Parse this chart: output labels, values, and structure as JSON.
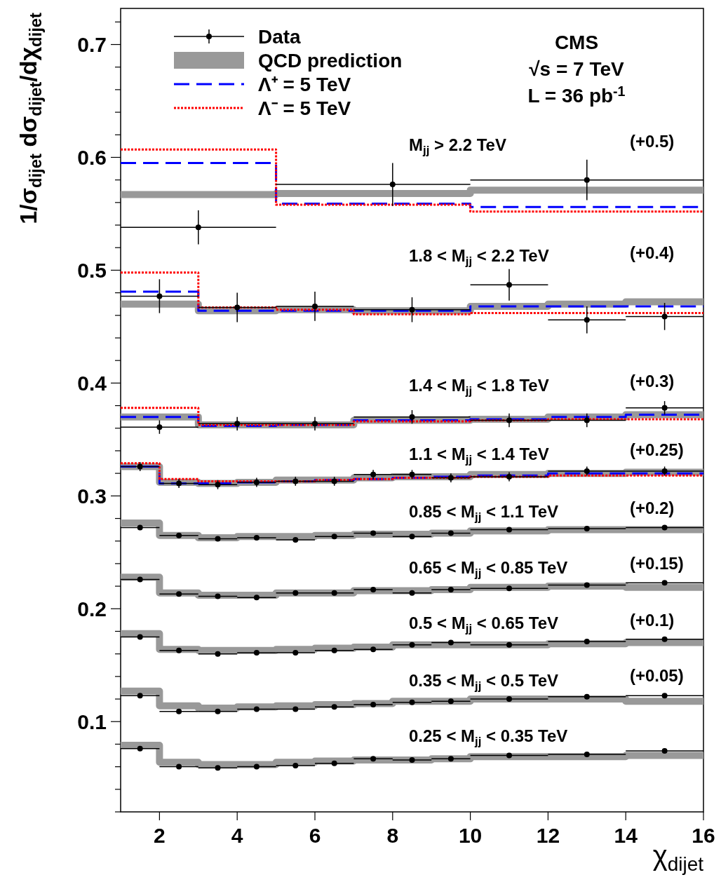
{
  "chart_data": {
    "type": "scatter",
    "xlabel": "χ$_{dijet}$",
    "ylabel": "1/σ$_{dijet}$ dσ$_{dijet}$/dχ$_{dijet}$",
    "xlim": [
      1,
      16
    ],
    "xticks": [
      2,
      4,
      6,
      8,
      10,
      12,
      14,
      16
    ],
    "ylim": [
      0.02,
      0.732
    ],
    "yticks": [
      {
        "value": 0.02,
        "label": null
      },
      {
        "value": 0.04,
        "label": null
      },
      {
        "value": 0.06,
        "label": null
      },
      {
        "value": 0.08,
        "label": null
      },
      0.1,
      {
        "value": 0.12,
        "label": null
      },
      {
        "value": 0.14,
        "label": null
      },
      {
        "value": 0.16,
        "label": null
      },
      {
        "value": 0.18,
        "label": null
      },
      0.2,
      {
        "value": 0.22,
        "label": null
      },
      {
        "value": 0.24,
        "label": null
      },
      {
        "value": 0.26,
        "label": null
      },
      {
        "value": 0.28,
        "label": null
      },
      0.3,
      {
        "value": 0.32,
        "label": null
      },
      {
        "value": 0.34,
        "label": null
      },
      {
        "value": 0.36,
        "label": null
      },
      {
        "value": 0.38,
        "label": null
      },
      0.4,
      {
        "value": 0.42,
        "label": null
      },
      {
        "value": 0.44,
        "label": null
      },
      {
        "value": 0.46,
        "label": null
      },
      {
        "value": 0.48,
        "label": null
      },
      0.5,
      {
        "value": 0.52,
        "label": null
      },
      {
        "value": 0.54,
        "label": null
      },
      {
        "value": 0.56,
        "label": null
      },
      {
        "value": 0.58,
        "label": null
      },
      0.6,
      {
        "value": 0.62,
        "label": null
      },
      {
        "value": 0.64,
        "label": null
      },
      {
        "value": 0.66,
        "label": null
      },
      {
        "value": 0.68,
        "label": null
      },
      0.7,
      {
        "value": 0.72,
        "label": null
      }
    ],
    "legend": "top left",
    "series": [
      {
        "name": "Data",
        "color": "#000000",
        "marker": "circle",
        "x": [
          3,
          8,
          13,
          2,
          4,
          6,
          8.5,
          11,
          13,
          15,
          2,
          4,
          6,
          8.5,
          11,
          13,
          15,
          1.5,
          2.5,
          3.5,
          4.5,
          5.5,
          6.5,
          7.5,
          8.5,
          9.5,
          11,
          13,
          15,
          1.5,
          2.5,
          3.5,
          4.5,
          5.5,
          6.5,
          7.5,
          8.5,
          9.5,
          11,
          13,
          15,
          1.5,
          2.5,
          3.5,
          4.5,
          5.5,
          6.5,
          7.5,
          8.5,
          9.5,
          11,
          13,
          15,
          1.5,
          2.5,
          3.5,
          4.5,
          5.5,
          6.5,
          7.5,
          8.5,
          9.5,
          11,
          13,
          15,
          1.5,
          2.5,
          3.5,
          4.5,
          5.5,
          6.5,
          7.5,
          8.5,
          9.5,
          11,
          13,
          15,
          1.5,
          2.5,
          3.5,
          4.5,
          5.5,
          6.5,
          7.5,
          8.5,
          9.5,
          11,
          13,
          15
        ],
        "values": [
          0.538,
          0.576,
          0.58,
          0.477,
          0.467,
          0.468,
          0.465,
          0.487,
          0.456,
          0.459,
          0.361,
          0.364,
          0.364,
          0.37,
          0.367,
          0.367,
          0.378,
          0.326,
          0.311,
          0.31,
          0.312,
          0.313,
          0.313,
          0.319,
          0.319,
          0.316,
          0.317,
          0.322,
          0.322,
          0.272,
          0.265,
          0.262,
          0.263,
          0.261,
          0.264,
          0.267,
          0.264,
          0.267,
          0.27,
          0.271,
          0.272,
          0.226,
          0.213,
          0.211,
          0.21,
          0.214,
          0.214,
          0.217,
          0.214,
          0.217,
          0.218,
          0.221,
          0.223,
          0.175,
          0.163,
          0.16,
          0.161,
          0.161,
          0.163,
          0.164,
          0.168,
          0.17,
          0.168,
          0.171,
          0.173,
          0.123,
          0.109,
          0.109,
          0.111,
          0.111,
          0.113,
          0.115,
          0.117,
          0.118,
          0.12,
          0.122,
          0.123,
          0.076,
          0.06,
          0.059,
          0.06,
          0.061,
          0.063,
          0.067,
          0.066,
          0.067,
          0.07,
          0.071,
          0.074
        ],
        "errors": [
          0.015,
          0.019,
          0.018,
          0.015,
          0.013,
          0.013,
          0.011,
          0.014,
          0.012,
          0.012,
          0.006,
          0.006,
          0.006,
          0.006,
          0.006,
          0.006,
          0.006,
          0.004,
          0.004,
          0.004,
          0.004,
          0.004,
          0.004,
          0.004,
          0.004,
          0.004,
          0.004,
          0.004,
          0.004,
          null,
          null,
          null,
          null,
          null,
          null,
          null,
          null,
          null,
          null,
          null,
          null,
          null,
          null,
          null,
          null,
          null,
          null,
          null,
          null,
          null,
          null,
          null,
          null,
          null,
          null,
          null,
          null,
          null,
          null,
          null,
          null,
          null,
          null,
          null,
          null,
          null,
          null,
          null,
          null,
          null,
          null,
          null,
          null,
          null,
          null,
          null,
          null,
          null,
          null,
          null,
          null,
          null,
          null,
          null,
          null,
          null,
          null,
          null,
          null
        ],
        "xerrors": [
          [
            1,
            5
          ],
          [
            5,
            10
          ],
          [
            10,
            16
          ],
          [
            1,
            3
          ],
          [
            3,
            5
          ],
          [
            5,
            7
          ],
          [
            7,
            10
          ],
          [
            10,
            12
          ],
          [
            12,
            14
          ],
          [
            14,
            16
          ],
          [
            1,
            3
          ],
          [
            3,
            5
          ],
          [
            5,
            7
          ],
          [
            7,
            10
          ],
          [
            10,
            12
          ],
          [
            12,
            14
          ],
          [
            14,
            16
          ],
          [
            1,
            2
          ],
          [
            2,
            3
          ],
          [
            3,
            4
          ],
          [
            4,
            5
          ],
          [
            5,
            6
          ],
          [
            6,
            7
          ],
          [
            7,
            8
          ],
          [
            8,
            9
          ],
          [
            9,
            10
          ],
          [
            10,
            12
          ],
          [
            12,
            14
          ],
          [
            14,
            16
          ],
          [
            1,
            2
          ],
          [
            2,
            3
          ],
          [
            3,
            4
          ],
          [
            4,
            5
          ],
          [
            5,
            6
          ],
          [
            6,
            7
          ],
          [
            7,
            8
          ],
          [
            8,
            9
          ],
          [
            9,
            10
          ],
          [
            10,
            12
          ],
          [
            12,
            14
          ],
          [
            14,
            16
          ],
          [
            1,
            2
          ],
          [
            2,
            3
          ],
          [
            3,
            4
          ],
          [
            4,
            5
          ],
          [
            5,
            6
          ],
          [
            6,
            7
          ],
          [
            7,
            8
          ],
          [
            8,
            9
          ],
          [
            9,
            10
          ],
          [
            10,
            12
          ],
          [
            12,
            14
          ],
          [
            14,
            16
          ],
          [
            1,
            2
          ],
          [
            2,
            3
          ],
          [
            3,
            4
          ],
          [
            4,
            5
          ],
          [
            5,
            6
          ],
          [
            6,
            7
          ],
          [
            7,
            8
          ],
          [
            8,
            9
          ],
          [
            9,
            10
          ],
          [
            10,
            12
          ],
          [
            12,
            14
          ],
          [
            14,
            16
          ],
          [
            1,
            2
          ],
          [
            2,
            3
          ],
          [
            3,
            4
          ],
          [
            4,
            5
          ],
          [
            5,
            6
          ],
          [
            6,
            7
          ],
          [
            7,
            8
          ],
          [
            8,
            9
          ],
          [
            9,
            10
          ],
          [
            10,
            12
          ],
          [
            12,
            14
          ],
          [
            14,
            16
          ],
          [
            1,
            2
          ],
          [
            2,
            3
          ],
          [
            3,
            4
          ],
          [
            4,
            5
          ],
          [
            5,
            6
          ],
          [
            6,
            7
          ],
          [
            7,
            8
          ],
          [
            8,
            9
          ],
          [
            9,
            10
          ],
          [
            10,
            12
          ],
          [
            12,
            14
          ],
          [
            14,
            16
          ]
        ]
      },
      {
        "name": "QCD prediction",
        "type": "step",
        "color": "#999999",
        "line_style": "solid",
        "x": [
          1,
          5,
          10,
          16
        ],
        "values": [
          0.567,
          0.568,
          0.571,
          0.571
        ]
      },
      {
        "type": "step",
        "color": "#999999",
        "line_style": "solid",
        "x": [
          1,
          3,
          5,
          7,
          10,
          12,
          14,
          16
        ],
        "values": [
          0.47,
          0.464,
          0.465,
          0.464,
          0.468,
          0.47,
          0.472,
          0.472
        ]
      },
      {
        "type": "step",
        "color": "#999999",
        "line_style": "solid",
        "x": [
          1,
          3,
          5,
          7,
          10,
          12,
          14,
          16
        ],
        "values": [
          0.37,
          0.363,
          0.363,
          0.367,
          0.368,
          0.37,
          0.372,
          0.372
        ]
      },
      {
        "type": "step",
        "color": "#999999",
        "line_style": "solid",
        "x": [
          1,
          2,
          3,
          4,
          5,
          6,
          7,
          8,
          9,
          10,
          12,
          14,
          16
        ],
        "values": [
          0.326,
          0.312,
          0.311,
          0.312,
          0.314,
          0.314,
          0.316,
          0.317,
          0.317,
          0.319,
          0.32,
          0.321,
          0.321
        ]
      },
      {
        "type": "step",
        "color": "#999999",
        "line_style": "solid",
        "x": [
          1,
          2,
          3,
          4,
          5,
          6,
          7,
          8,
          9,
          10,
          12,
          14,
          16
        ],
        "values": [
          0.276,
          0.265,
          0.263,
          0.264,
          0.264,
          0.265,
          0.266,
          0.266,
          0.267,
          0.269,
          0.27,
          0.27,
          0.27
        ]
      },
      {
        "type": "step",
        "color": "#999999",
        "line_style": "solid",
        "x": [
          1,
          2,
          3,
          4,
          5,
          6,
          7,
          8,
          9,
          10,
          12,
          14,
          16
        ],
        "values": [
          0.228,
          0.214,
          0.212,
          0.212,
          0.214,
          0.214,
          0.216,
          0.216,
          0.217,
          0.219,
          0.22,
          0.219,
          0.219
        ]
      },
      {
        "type": "step",
        "color": "#999999",
        "line_style": "solid",
        "x": [
          1,
          2,
          3,
          4,
          5,
          6,
          7,
          8,
          9,
          10,
          12,
          14,
          16
        ],
        "values": [
          0.178,
          0.164,
          0.163,
          0.163,
          0.164,
          0.165,
          0.166,
          0.168,
          0.168,
          0.168,
          0.169,
          0.17,
          0.17
        ]
      },
      {
        "type": "step",
        "color": "#999999",
        "line_style": "solid",
        "x": [
          1,
          2,
          3,
          4,
          5,
          6,
          7,
          8,
          9,
          10,
          12,
          14,
          16
        ],
        "values": [
          0.127,
          0.114,
          0.112,
          0.113,
          0.114,
          0.115,
          0.116,
          0.118,
          0.118,
          0.12,
          0.12,
          0.118,
          0.118
        ]
      },
      {
        "type": "step",
        "color": "#999999",
        "line_style": "solid",
        "x": [
          1,
          2,
          3,
          4,
          5,
          6,
          7,
          8,
          9,
          10,
          12,
          14,
          16
        ],
        "values": [
          0.079,
          0.064,
          0.062,
          0.062,
          0.064,
          0.065,
          0.066,
          0.066,
          0.067,
          0.069,
          0.069,
          0.07,
          0.07
        ]
      },
      {
        "name": "Λ⁺ = 5 TeV",
        "type": "step",
        "color": "#0000ff",
        "line_style": "dashed",
        "x": [
          1,
          5,
          10,
          16
        ],
        "values": [
          0.595,
          0.559,
          0.556,
          0.556
        ]
      },
      {
        "type": "step",
        "color": "#0000ff",
        "line_style": "dashed",
        "x": [
          1,
          3,
          5,
          7,
          10,
          12,
          14,
          16
        ],
        "values": [
          0.481,
          0.464,
          0.464,
          0.464,
          0.468,
          0.468,
          0.468,
          0.468
        ]
      },
      {
        "type": "step",
        "color": "#0000ff",
        "line_style": "dashed",
        "x": [
          1,
          3,
          5,
          7,
          10,
          12,
          14,
          16
        ],
        "values": [
          0.37,
          0.362,
          0.363,
          0.367,
          0.368,
          0.37,
          0.372,
          0.372
        ]
      },
      {
        "type": "step",
        "color": "#0000ff",
        "line_style": "dashed",
        "x": [
          1,
          2,
          3,
          4,
          5,
          6,
          7,
          8,
          9,
          10,
          12,
          14,
          16
        ],
        "values": [
          0.326,
          0.311,
          0.311,
          0.312,
          0.313,
          0.314,
          0.315,
          0.316,
          0.317,
          0.318,
          0.32,
          0.32,
          0.32
        ]
      },
      {
        "name": "Λ⁻ = 5 TeV",
        "type": "step",
        "color": "#ff0000",
        "line_style": "dotted",
        "x": [
          1,
          5,
          10,
          16
        ],
        "values": [
          0.607,
          0.558,
          0.552,
          0.552
        ]
      },
      {
        "type": "step",
        "color": "#ff0000",
        "line_style": "dotted",
        "x": [
          1,
          3,
          5,
          7,
          10,
          12,
          14,
          16
        ],
        "values": [
          0.498,
          0.467,
          0.465,
          0.461,
          0.462,
          0.462,
          0.462,
          0.462
        ]
      },
      {
        "type": "step",
        "color": "#ff0000",
        "line_style": "dotted",
        "x": [
          1,
          3,
          5,
          7,
          10,
          12,
          14,
          16
        ],
        "values": [
          0.378,
          0.363,
          0.363,
          0.366,
          0.367,
          0.368,
          0.368,
          0.368
        ]
      },
      {
        "type": "step",
        "color": "#ff0000",
        "line_style": "dotted",
        "x": [
          1,
          2,
          3,
          4,
          5,
          6,
          7,
          8,
          9,
          10,
          12,
          14,
          16
        ],
        "values": [
          0.329,
          0.315,
          0.313,
          0.313,
          0.313,
          0.314,
          0.315,
          0.316,
          0.316,
          0.317,
          0.318,
          0.318,
          0.318
        ]
      }
    ],
    "annotations": [
      "CMS",
      "√s = 7 TeV",
      "L = 36 pb$^{-1}$",
      "M$_{jj}$ > 2.2 TeV",
      "(+0.5)",
      "1.8 < M$_{jj}$ < 2.2 TeV",
      "(+0.4)",
      "1.4 < M$_{jj}$ < 1.8 TeV",
      "(+0.3)",
      "1.1 < M$_{jj}$ < 1.4 TeV",
      "(+0.25)",
      "0.85 < M$_{jj}$ < 1.1 TeV",
      "(+0.2)",
      "0.65 < M$_{jj}$ < 0.85 TeV",
      "(+0.15)",
      "0.5 < M$_{jj}$ < 0.65 TeV",
      "(+0.1)",
      "0.35 < M$_{jj}$ < 0.5 TeV",
      "(+0.05)",
      "0.25 < M$_{jj}$ < 0.35 TeV"
    ]
  }
}
